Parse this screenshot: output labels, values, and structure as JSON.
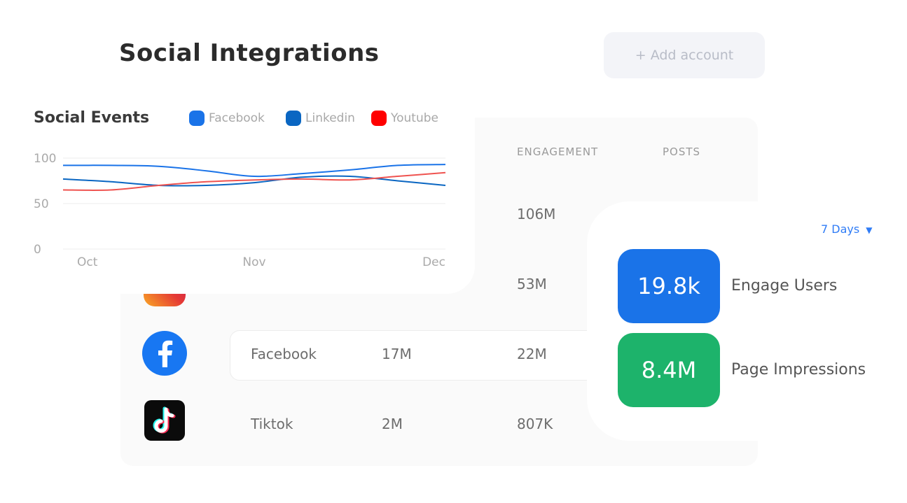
{
  "header": {
    "title": "Social Integrations",
    "add_account_label": "+ Add account"
  },
  "table": {
    "columns": {
      "engagement": "ENGAGEMENT",
      "posts": "POSTS"
    },
    "rows": [
      {
        "engagement": "106M"
      },
      {
        "engagement": "53M"
      },
      {
        "name": "Facebook",
        "followers": "17M",
        "engagement": "22M"
      },
      {
        "name": "Tiktok",
        "followers": "2M",
        "engagement": "807K"
      }
    ]
  },
  "chart": {
    "title": "Social Events",
    "legend": [
      {
        "name": "Facebook",
        "color": "#1a73e8"
      },
      {
        "name": "Linkedin",
        "color": "#0a66c2"
      },
      {
        "name": "Youtube",
        "color": "#ff0000"
      }
    ]
  },
  "chart_data": {
    "type": "line",
    "title": "Social Events",
    "x": [
      "Oct",
      "",
      "",
      "",
      "Nov",
      "",
      "",
      "",
      "Dec"
    ],
    "ylim": [
      0,
      100
    ],
    "yticks": [
      "100",
      "50",
      "0"
    ],
    "xticks": [
      "Oct",
      "Nov",
      "Dec"
    ],
    "grid": true,
    "legend_position": "top",
    "series": [
      {
        "name": "Facebook",
        "color": "#1a73e8",
        "values": [
          92,
          92,
          91,
          86,
          80,
          83,
          87,
          92,
          93
        ]
      },
      {
        "name": "Linkedin",
        "color": "#0a66c2",
        "values": [
          77,
          74,
          70,
          70,
          73,
          79,
          80,
          75,
          70
        ]
      },
      {
        "name": "Youtube",
        "color": "#ef5350",
        "values": [
          65,
          65,
          70,
          74,
          76,
          77,
          76,
          80,
          84
        ]
      }
    ]
  },
  "stats": {
    "range_label": "7 Days",
    "range_caret": "▼",
    "items": [
      {
        "value": "19.8k",
        "label": "Engage Users",
        "color": "#1a73e8"
      },
      {
        "value": "8.4M",
        "label": "Page Impressions",
        "color": "#1db36b"
      }
    ]
  }
}
